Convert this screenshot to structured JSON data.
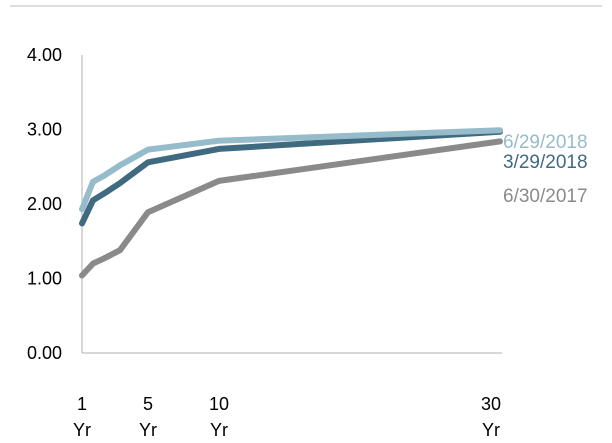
{
  "chart_data": {
    "type": "line",
    "title": "",
    "xlabel": "",
    "ylabel": "",
    "ylim": [
      0,
      4
    ],
    "yticks": [
      "0.00",
      "1.00",
      "2.00",
      "3.00",
      "4.00"
    ],
    "xticks": [
      {
        "value": 1,
        "line1": "1",
        "line2": "Yr"
      },
      {
        "value": 5,
        "line1": "5",
        "line2": "Yr"
      },
      {
        "value": 10,
        "line1": "10",
        "line2": "Yr"
      },
      {
        "value": 30,
        "line1": "30",
        "line2": "Yr"
      }
    ],
    "grid": false,
    "legend": "inline-right",
    "series": [
      {
        "name": "6/30/2017",
        "color": "#8a8a8a",
        "points": [
          [
            1,
            1.04
          ],
          [
            1.5,
            1.2
          ],
          [
            2,
            1.27
          ],
          [
            3,
            1.38
          ],
          [
            5,
            1.89
          ],
          [
            10,
            2.31
          ],
          [
            30,
            2.84
          ]
        ]
      },
      {
        "name": "3/29/2018",
        "color": "#3f6a80",
        "points": [
          [
            1,
            1.74
          ],
          [
            1.5,
            2.05
          ],
          [
            2,
            2.14
          ],
          [
            3,
            2.28
          ],
          [
            5,
            2.56
          ],
          [
            10,
            2.74
          ],
          [
            30,
            2.97
          ]
        ]
      },
      {
        "name": "6/29/2018",
        "color": "#96bccb",
        "points": [
          [
            1,
            1.93
          ],
          [
            1.5,
            2.3
          ],
          [
            2,
            2.38
          ],
          [
            3,
            2.52
          ],
          [
            5,
            2.73
          ],
          [
            10,
            2.85
          ],
          [
            30,
            2.99
          ]
        ]
      }
    ]
  }
}
